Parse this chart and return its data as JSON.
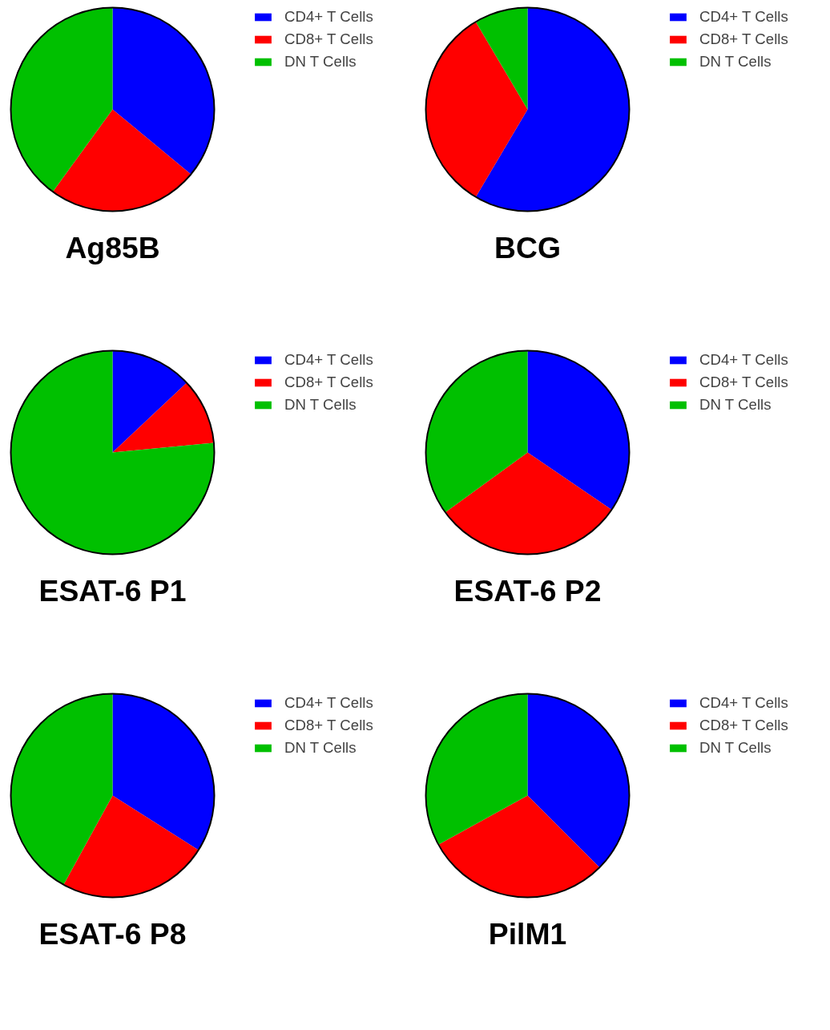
{
  "chart_data": [
    {
      "type": "pie",
      "title": "Ag85B",
      "categories": [
        "CD4+ T Cells",
        "CD8+ T Cells",
        "DN T Cells"
      ],
      "values": [
        36,
        24,
        40
      ],
      "colors": [
        "#0000ff",
        "#ff0000",
        "#00c000"
      ],
      "legend": "top right"
    },
    {
      "type": "pie",
      "title": "BCG",
      "categories": [
        "CD4+ T Cells",
        "CD8+ T Cells",
        "DN T Cells"
      ],
      "values": [
        58.5,
        33,
        8.5
      ],
      "colors": [
        "#0000ff",
        "#ff0000",
        "#00c000"
      ],
      "legend": "top right"
    },
    {
      "type": "pie",
      "title": "ESAT-6 P1",
      "categories": [
        "CD4+ T Cells",
        "CD8+ T Cells",
        "DN T Cells"
      ],
      "values": [
        13,
        10.5,
        76.5
      ],
      "colors": [
        "#0000ff",
        "#ff0000",
        "#00c000"
      ],
      "legend": "top right"
    },
    {
      "type": "pie",
      "title": "ESAT-6 P2",
      "categories": [
        "CD4+ T Cells",
        "CD8+ T Cells",
        "DN T Cells"
      ],
      "values": [
        34.5,
        30.5,
        35
      ],
      "colors": [
        "#0000ff",
        "#ff0000",
        "#00c000"
      ],
      "legend": "top right"
    },
    {
      "type": "pie",
      "title": "ESAT-6 P8",
      "categories": [
        "CD4+ T Cells",
        "CD8+ T Cells",
        "DN T Cells"
      ],
      "values": [
        34,
        24,
        42
      ],
      "colors": [
        "#0000ff",
        "#ff0000",
        "#00c000"
      ],
      "legend": "top right"
    },
    {
      "type": "pie",
      "title": "PilM1",
      "categories": [
        "CD4+ T Cells",
        "CD8+ T Cells",
        "DN T Cells"
      ],
      "values": [
        37.5,
        29.5,
        33
      ],
      "colors": [
        "#0000ff",
        "#ff0000",
        "#00c000"
      ],
      "legend": "top right"
    }
  ]
}
